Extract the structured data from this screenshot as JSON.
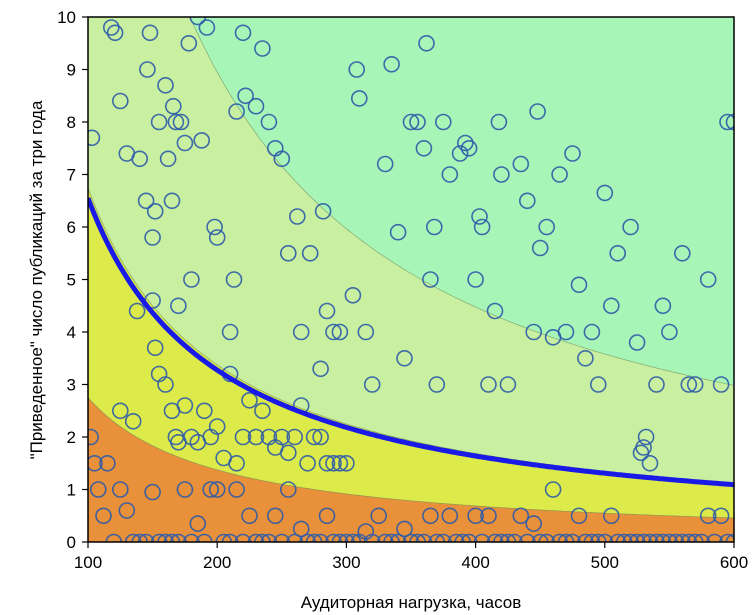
{
  "chart_data": {
    "type": "scatter",
    "title": "",
    "xlabel": "Аудиторная нагрузка, часов",
    "ylabel": "\"Приведенное\" число публикаций за три года",
    "xlim": [
      100,
      600
    ],
    "ylim": [
      0,
      10
    ],
    "x_ticks": [
      "100",
      "200",
      "300",
      "400",
      "500",
      "600"
    ],
    "y_ticks": [
      "0",
      "1",
      "2",
      "3",
      "4",
      "5",
      "6",
      "7",
      "8",
      "9",
      "10"
    ],
    "grid": false,
    "legend": "none",
    "zones": [
      {
        "name": "",
        "color": "#E8913A",
        "upper_curve_k": 275
      },
      {
        "name": "",
        "color": "#DCEB4A",
        "upper_curve_k": 675
      },
      {
        "name": "",
        "color": "#C8F0A0",
        "upper_curve_k": 1790
      },
      {
        "name": "",
        "color": "#A8F5B8",
        "upper_curve_k": null
      }
    ],
    "highlight_curve": {
      "formula": "y = 655 / x",
      "color": "#1A1AE6"
    },
    "marker": {
      "shape": "circle",
      "fill": "none",
      "edge_color": "#2E5BA8"
    },
    "series": [
      {
        "x": [
          103,
          118,
          121,
          125,
          130,
          140,
          145,
          146,
          148,
          150,
          152,
          155,
          160,
          162,
          165,
          166,
          168,
          170,
          172,
          175,
          178,
          180,
          185,
          188,
          192,
          198,
          200,
          210,
          213,
          215,
          220,
          222,
          230,
          235,
          240,
          245,
          250,
          255,
          262,
          265,
          272,
          280,
          282,
          285,
          290,
          295,
          305,
          308,
          310,
          315,
          320,
          330,
          335,
          340,
          345,
          350,
          355,
          360,
          362,
          365,
          368,
          370,
          375,
          380,
          388,
          392,
          395,
          400,
          403,
          405,
          410,
          415,
          418,
          420,
          425,
          435,
          440,
          445,
          448,
          450,
          455,
          460,
          465,
          470,
          475,
          480,
          485,
          490,
          495,
          500,
          505,
          510,
          520,
          525,
          528,
          530,
          532,
          535,
          540,
          545,
          550,
          560,
          565,
          570,
          580,
          590,
          595,
          600,
          125,
          135,
          138,
          150,
          152,
          155,
          160,
          165,
          168,
          170,
          175,
          180,
          185,
          190,
          195,
          200,
          205,
          210,
          215,
          220,
          225,
          230,
          235,
          240,
          245,
          250,
          255,
          260,
          265,
          270,
          275,
          280,
          285,
          290,
          295,
          300,
          102,
          105,
          108,
          112,
          115,
          120,
          125,
          130,
          135,
          140,
          145,
          150,
          155,
          160,
          165,
          170,
          175,
          180,
          185,
          190,
          195,
          200,
          205,
          210,
          215,
          220,
          225,
          230,
          235,
          240,
          245,
          250,
          255,
          260,
          265,
          270,
          275,
          280,
          285,
          290,
          295,
          300,
          305,
          310,
          315,
          320,
          325,
          330,
          335,
          340,
          345,
          350,
          355,
          360,
          365,
          370,
          375,
          380,
          385,
          390,
          395,
          400,
          405,
          410,
          415,
          420,
          425,
          430,
          435,
          440,
          445,
          450,
          455,
          460,
          465,
          470,
          475,
          480,
          485,
          490,
          495,
          500,
          505,
          510,
          515,
          520,
          525,
          530,
          535,
          540,
          545,
          550,
          555,
          560,
          565,
          570,
          575,
          580,
          585,
          590,
          595,
          600
        ],
        "y": [
          7.7,
          9.8,
          9.7,
          8.4,
          7.4,
          7.3,
          6.5,
          9.0,
          9.7,
          5.8,
          6.3,
          8.0,
          8.7,
          7.3,
          6.5,
          8.3,
          8.0,
          4.5,
          8.0,
          7.6,
          9.5,
          5.0,
          10.0,
          7.65,
          9.8,
          6.0,
          5.8,
          4.0,
          5.0,
          8.2,
          9.7,
          8.5,
          8.3,
          9.4,
          8.0,
          7.5,
          7.3,
          5.5,
          6.2,
          4.0,
          5.5,
          3.3,
          6.3,
          4.4,
          4.0,
          4.0,
          4.7,
          9.0,
          8.45,
          4.0,
          3.0,
          7.2,
          9.1,
          5.9,
          3.5,
          8.0,
          8.0,
          7.5,
          9.5,
          5.0,
          6.0,
          3.0,
          8.0,
          7.0,
          7.4,
          7.6,
          7.5,
          5.0,
          6.2,
          6.0,
          3.0,
          4.4,
          8.0,
          7.0,
          3.0,
          7.2,
          6.5,
          4.0,
          8.2,
          5.6,
          6.0,
          3.9,
          7.0,
          4.0,
          7.4,
          4.9,
          3.5,
          4.0,
          3.0,
          6.65,
          4.5,
          5.5,
          6.0,
          3.8,
          1.7,
          1.8,
          2.0,
          1.5,
          3.0,
          4.5,
          4.0,
          5.5,
          3.0,
          3.0,
          5.0,
          3.0,
          8.0,
          8.0,
          2.5,
          2.3,
          4.4,
          4.6,
          3.7,
          3.2,
          3.0,
          2.5,
          2.0,
          1.9,
          2.6,
          2.0,
          1.9,
          2.5,
          2.0,
          2.2,
          1.6,
          3.2,
          1.5,
          2.0,
          2.7,
          2.0,
          2.5,
          2.0,
          1.8,
          2.0,
          1.7,
          2.0,
          2.6,
          1.5,
          2.0,
          2.0,
          1.5,
          1.5,
          1.5,
          1.5,
          2.0,
          1.5,
          1.0,
          0.5,
          1.5,
          0.0,
          1.0,
          0.6,
          0.0,
          0.0,
          0.0,
          0.95,
          0.0,
          0.0,
          0.0,
          0.0,
          1.0,
          0.0,
          0.35,
          0.0,
          1.0,
          1.0,
          0.0,
          0.0,
          1.0,
          0.0,
          0.5,
          0.0,
          0.0,
          0.0,
          0.5,
          0.0,
          1.0,
          0.0,
          0.25,
          0.0,
          0.0,
          0.0,
          0.5,
          0.0,
          0.0,
          0.0,
          0.0,
          0.0,
          0.2,
          0.0,
          0.5,
          0.0,
          0.0,
          0.0,
          0.25,
          0.0,
          0.0,
          0.0,
          0.5,
          0.0,
          0.0,
          0.5,
          0.0,
          0.0,
          0.0,
          0.5,
          0.0,
          0.5,
          0.0,
          0.0,
          0.0,
          0.0,
          0.5,
          0.0,
          0.35,
          0.0,
          0.0,
          1.0,
          0.0,
          0.0,
          0.0,
          0.5,
          0.0,
          0.0,
          0.0,
          0.0,
          0.5,
          0.0,
          0.0,
          0.0,
          0.0,
          0.0,
          0.0,
          0.0,
          0.0,
          0.0,
          0.0,
          0.0,
          0.0,
          0.0,
          0.0,
          0.5,
          0.0,
          0.5,
          0.0,
          0.0
        ]
      }
    ]
  }
}
